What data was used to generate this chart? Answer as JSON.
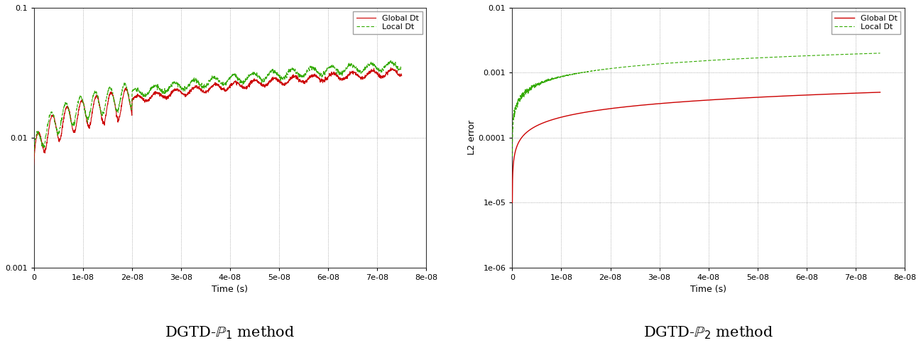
{
  "fig_width": 12.97,
  "fig_height": 4.83,
  "dpi": 100,
  "background_color": "#ffffff",
  "plot1": {
    "title": "DGTD-$\\mathbb{P}_1$ method",
    "xlabel": "Time (s)",
    "ylabel": "",
    "xlim": [
      0,
      8e-08
    ],
    "ylim": [
      0.001,
      0.1
    ],
    "yticks": [
      0.001,
      0.01,
      0.1
    ],
    "xticks": [
      0,
      1e-08,
      2e-08,
      3e-08,
      4e-08,
      5e-08,
      6e-08,
      7e-08,
      8e-08
    ],
    "grid_color": "#999999",
    "global_color": "#cc0000",
    "local_color": "#33aa00"
  },
  "plot2": {
    "title": "DGTD-$\\mathbb{P}_2$ method",
    "xlabel": "Time (s)",
    "ylabel": "L2 error",
    "xlim": [
      0,
      8e-08
    ],
    "ylim": [
      1e-06,
      0.01
    ],
    "yticks": [
      1e-06,
      1e-05,
      0.0001,
      0.001,
      0.01
    ],
    "xticks": [
      0,
      1e-08,
      2e-08,
      3e-08,
      4e-08,
      5e-08,
      6e-08,
      7e-08,
      8e-08
    ],
    "grid_color": "#999999",
    "global_color": "#cc0000",
    "local_color": "#33aa00"
  }
}
